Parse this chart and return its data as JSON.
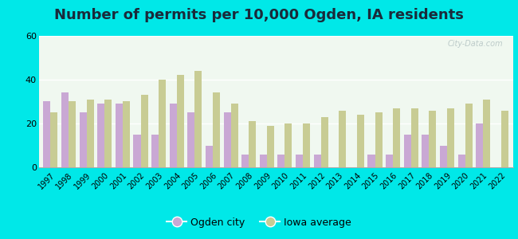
{
  "years": [
    1997,
    1998,
    1999,
    2000,
    2001,
    2002,
    2003,
    2004,
    2005,
    2006,
    2007,
    2008,
    2009,
    2010,
    2011,
    2012,
    2013,
    2014,
    2015,
    2016,
    2017,
    2018,
    2019,
    2020,
    2021,
    2022
  ],
  "ogden": [
    30,
    34,
    25,
    29,
    29,
    15,
    15,
    29,
    25,
    10,
    25,
    6,
    6,
    6,
    6,
    6,
    0,
    0,
    6,
    6,
    15,
    15,
    10,
    6,
    20,
    0
  ],
  "iowa": [
    25,
    30,
    31,
    31,
    30,
    33,
    40,
    42,
    44,
    34,
    29,
    21,
    19,
    20,
    20,
    23,
    26,
    24,
    25,
    27,
    27,
    26,
    27,
    29,
    31,
    26
  ],
  "ogden_color": "#c9a8d4",
  "iowa_color": "#c8cc94",
  "title": "Number of permits per 10,000 Ogden, IA residents",
  "title_fontsize": 13,
  "ylim": [
    0,
    60
  ],
  "yticks": [
    0,
    20,
    40,
    60
  ],
  "bg_outer": "#00e8e8",
  "bg_plot_top": "#e0f0e8",
  "bg_plot_bottom": "#f0f8f0",
  "legend_ogden": "Ogden city",
  "legend_iowa": "Iowa average",
  "watermark": "City-Data.com"
}
